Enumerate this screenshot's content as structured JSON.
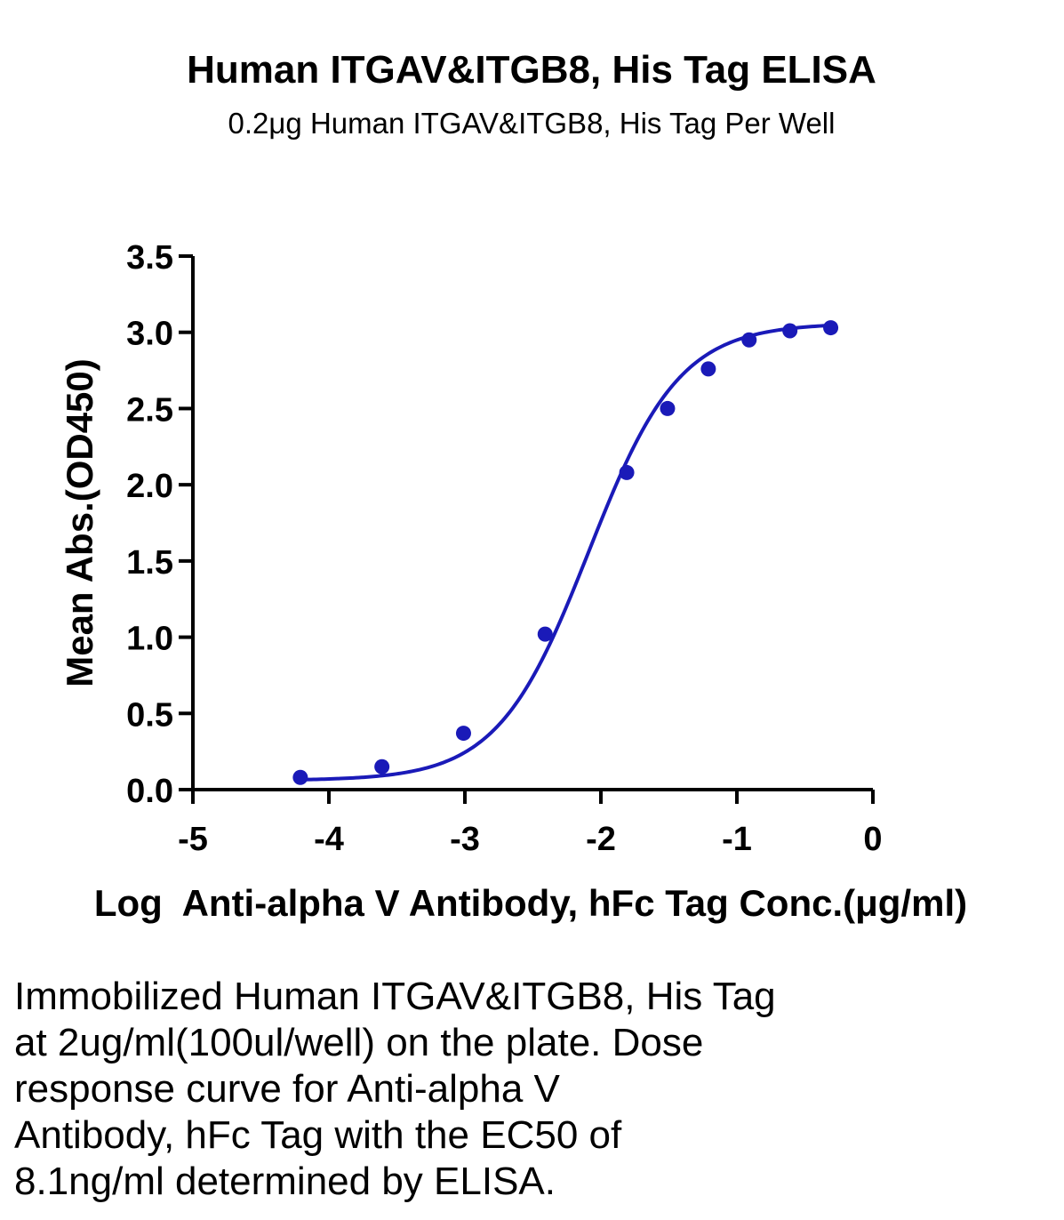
{
  "chart_data": {
    "type": "scatter",
    "title": "Human ITGAV&ITGB8, His Tag ELISA",
    "subtitle": "0.2μg Human ITGAV&ITGB8, His Tag Per Well",
    "xlabel": "Log  Anti-alpha V Antibody, hFc Tag Conc.(μg/ml)",
    "ylabel": "Mean Abs.(OD450)",
    "xlim": [
      -5,
      0
    ],
    "ylim": [
      0,
      3.5
    ],
    "x_ticks": [
      "-5",
      "-4",
      "-3",
      "-2",
      "-1",
      "0"
    ],
    "y_ticks": [
      "0.0",
      "0.5",
      "1.0",
      "1.5",
      "2.0",
      "2.5",
      "3.0",
      "3.5"
    ],
    "grid": false,
    "series": [
      {
        "color": "#1a1ab8",
        "points": [
          {
            "x": -4.21,
            "y": 0.08
          },
          {
            "x": -3.61,
            "y": 0.15
          },
          {
            "x": -3.01,
            "y": 0.37
          },
          {
            "x": -2.41,
            "y": 1.02
          },
          {
            "x": -1.81,
            "y": 2.08
          },
          {
            "x": -1.51,
            "y": 2.5
          },
          {
            "x": -1.21,
            "y": 2.76
          },
          {
            "x": -0.91,
            "y": 2.95
          },
          {
            "x": -0.61,
            "y": 3.01
          },
          {
            "x": -0.31,
            "y": 3.03
          }
        ],
        "fit": {
          "bottom": 0.06,
          "top": 3.06,
          "log_ec50": -2.09,
          "hill_slope": 1.3
        }
      }
    ]
  },
  "caption_lines": [
    "Immobilized Human ITGAV&ITGB8, His Tag",
    "at 2ug/ml(100ul/well) on the plate. Dose",
    "response curve for Anti-alpha V",
    "Antibody, hFc Tag with the EC50 of",
    "8.1ng/ml determined by ELISA."
  ]
}
